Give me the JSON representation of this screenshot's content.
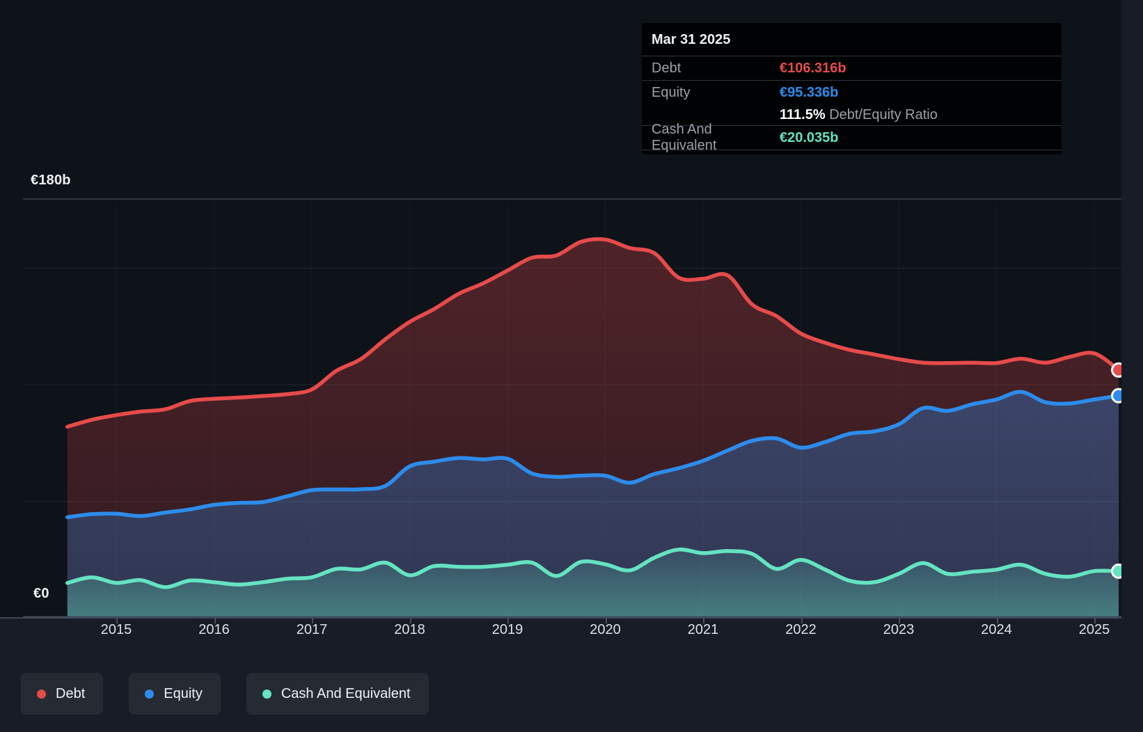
{
  "y_axis": {
    "top": "€180b",
    "zero": "€0"
  },
  "x_axis": {
    "years": [
      "2015",
      "2016",
      "2017",
      "2018",
      "2019",
      "2020",
      "2021",
      "2022",
      "2023",
      "2024",
      "2025"
    ]
  },
  "tooltip": {
    "date": "Mar 31 2025",
    "debt": {
      "label": "Debt",
      "value": "€106.316b",
      "color": "#e64b4b"
    },
    "equity": {
      "label": "Equity",
      "value": "€95.336b",
      "color": "#2d8ceb"
    },
    "ratio": {
      "value": "111.5%",
      "label": "Debt/Equity Ratio"
    },
    "cash": {
      "label": "Cash And Equivalent",
      "value": "€20.035b",
      "color": "#65e3c2"
    }
  },
  "legend": {
    "items": [
      {
        "label": "Debt",
        "color": "#e64b4b"
      },
      {
        "label": "Equity",
        "color": "#2d8ceb"
      },
      {
        "label": "Cash And Equivalent",
        "color": "#65e3c2"
      }
    ]
  },
  "chart_data": {
    "type": "area",
    "title": "Debt to Equity history (€ billions)",
    "ylim": [
      0,
      180
    ],
    "y_gridlines_b": [
      0,
      50,
      100,
      150,
      180
    ],
    "x_tick_years": [
      2015,
      2016,
      2017,
      2018,
      2019,
      2020,
      2021,
      2022,
      2023,
      2024,
      2025
    ],
    "x": [
      2014.5,
      2014.75,
      2015,
      2015.25,
      2015.5,
      2015.75,
      2016,
      2016.25,
      2016.5,
      2016.75,
      2017,
      2017.25,
      2017.5,
      2017.75,
      2018,
      2018.25,
      2018.5,
      2018.75,
      2019,
      2019.25,
      2019.5,
      2019.75,
      2020,
      2020.25,
      2020.5,
      2020.75,
      2021,
      2021.25,
      2021.5,
      2021.75,
      2022,
      2022.25,
      2022.5,
      2022.75,
      2023,
      2023.25,
      2023.5,
      2023.75,
      2024,
      2024.25,
      2024.5,
      2024.75,
      2025,
      2025.25
    ],
    "series": [
      {
        "name": "Debt",
        "color": "#e64b4b",
        "values": [
          82,
          85,
          87,
          88.5,
          89.5,
          93,
          94,
          94.5,
          95.2,
          96,
          98,
          106,
          111,
          119.5,
          127,
          132.5,
          139,
          143.5,
          149,
          154.5,
          155.5,
          161.3,
          162.3,
          158.7,
          156.5,
          146,
          145.5,
          147,
          134.5,
          129.5,
          122,
          118,
          115,
          113,
          111,
          109.5,
          109.3,
          109.5,
          109.3,
          111.2,
          109.5,
          112,
          113.5,
          106.316
        ]
      },
      {
        "name": "Equity",
        "color": "#2d8ceb",
        "values": [
          43.2,
          44.5,
          44.7,
          43.7,
          45.2,
          46.5,
          48.5,
          49.3,
          49.7,
          52.2,
          54.8,
          55.1,
          55.2,
          56.6,
          65,
          67,
          68.6,
          68,
          68.3,
          62,
          60.5,
          61,
          61,
          58,
          61.7,
          64.2,
          67.4,
          71.8,
          76,
          77,
          73,
          75.5,
          79,
          80,
          83,
          90,
          88.8,
          91.6,
          93.7,
          97,
          92.5,
          92,
          93.7,
          95.336
        ]
      },
      {
        "name": "Cash And Equivalent",
        "color": "#65e3c2",
        "values": [
          15,
          17.4,
          15,
          16.2,
          13.2,
          16,
          15.3,
          14.3,
          15.3,
          16.8,
          17.4,
          21,
          20.8,
          23.7,
          18.3,
          22.2,
          21.9,
          21.9,
          22.8,
          23.7,
          18,
          24,
          23,
          20.4,
          25.8,
          29.3,
          27.8,
          28.7,
          27.5,
          21,
          24.9,
          20.7,
          15.9,
          15.3,
          18.9,
          23.5,
          18.9,
          19.8,
          20.7,
          22.8,
          18.9,
          17.7,
          20.1,
          20.035
        ]
      }
    ],
    "legend_position": "bottom",
    "grid": true
  }
}
